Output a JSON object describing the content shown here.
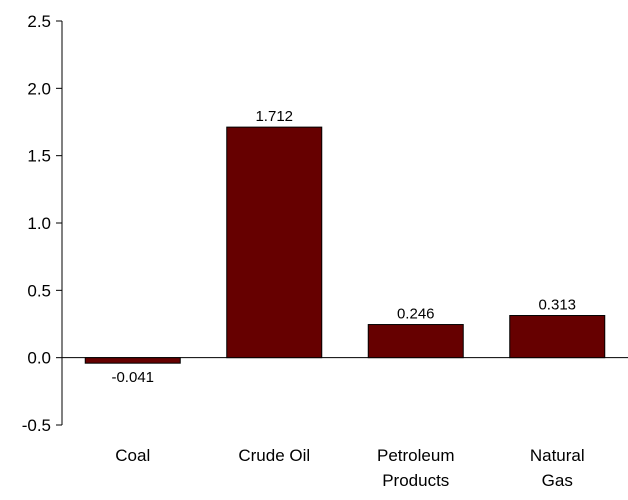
{
  "chart_data": {
    "type": "bar",
    "title": "",
    "xlabel": "",
    "ylabel": "",
    "categories": [
      [
        "Coal"
      ],
      [
        "Crude Oil"
      ],
      [
        "Petroleum",
        "Products"
      ],
      [
        "Natural",
        "Gas"
      ]
    ],
    "values": [
      -0.041,
      1.712,
      0.246,
      0.313
    ],
    "value_labels": [
      "-0.041",
      "1.712",
      "0.246",
      "0.313"
    ],
    "ylim": [
      -0.5,
      2.5
    ],
    "yticks": [
      2.5,
      2.0,
      1.5,
      1.0,
      0.5,
      0.0,
      -0.5
    ],
    "ytick_labels": [
      "2.5",
      "2.0",
      "1.5",
      "1.0",
      "0.5",
      "0.0",
      "-0.5"
    ],
    "grid": false,
    "legend": "none",
    "bar_color": "#660000",
    "bar_edge_color": "#000000",
    "axis_color": "#000000"
  }
}
